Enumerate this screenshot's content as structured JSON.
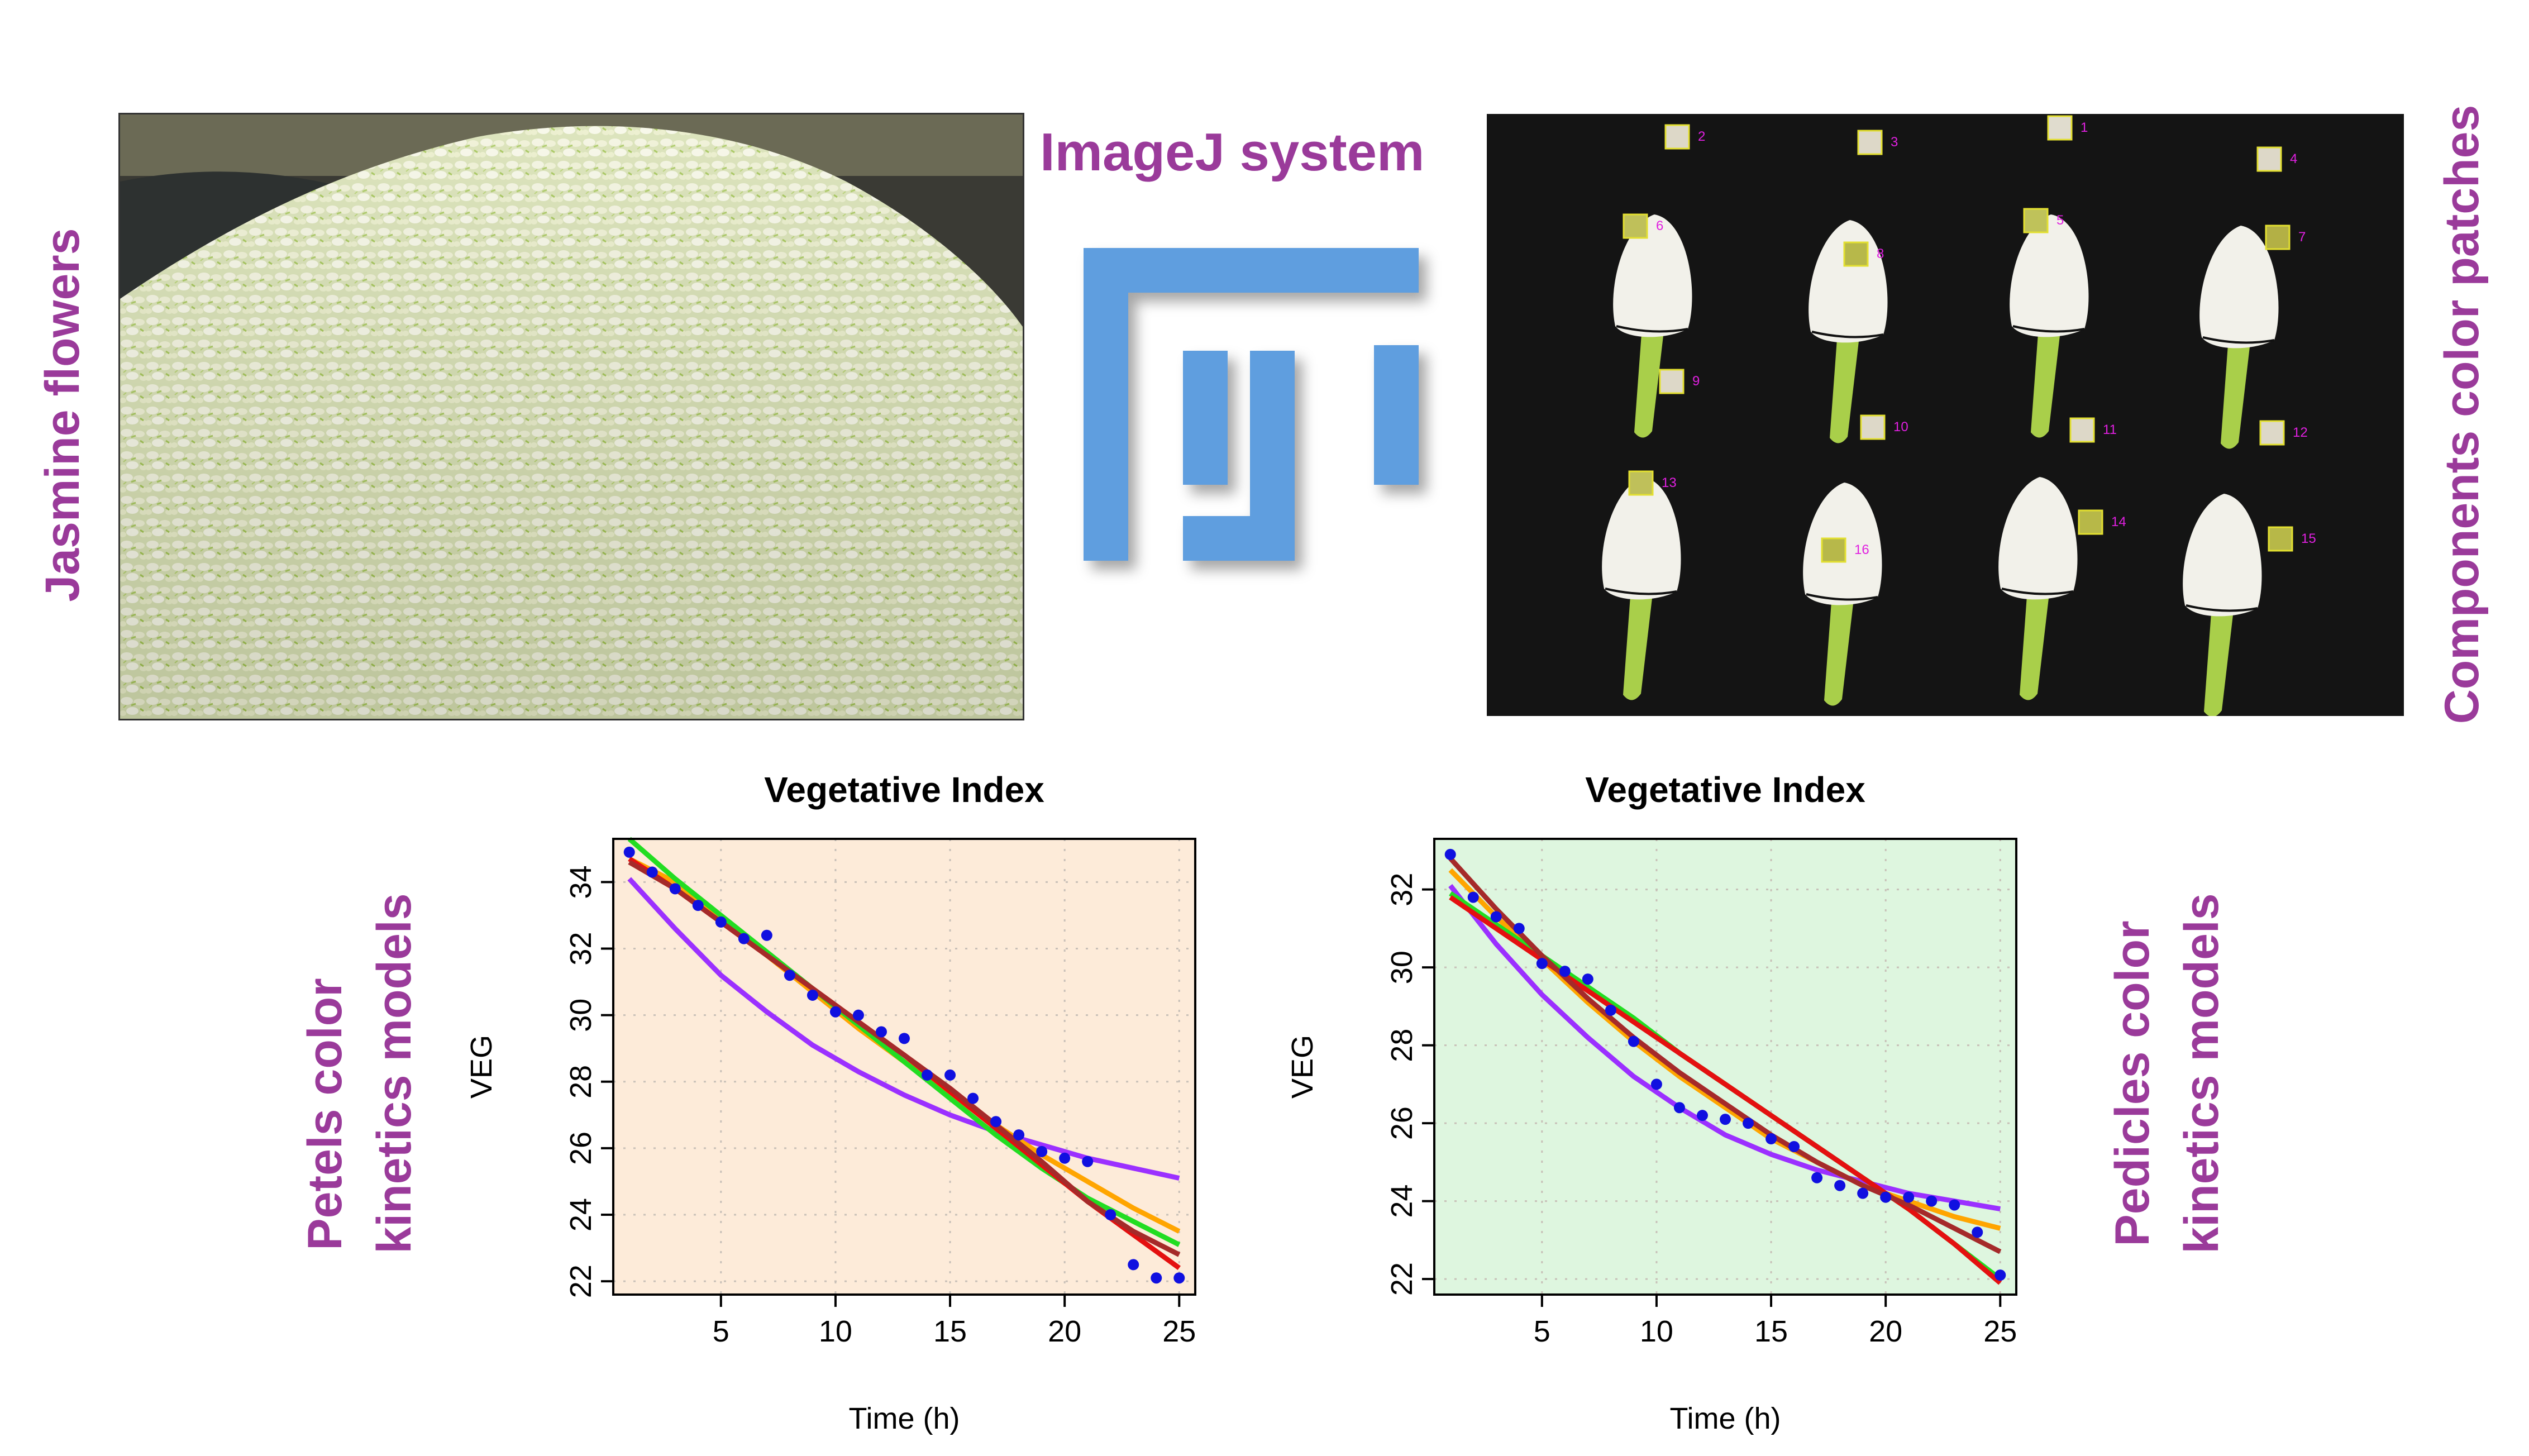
{
  "labels": {
    "jasmine_flowers": "Jasmine flowers",
    "imagej_system": "ImageJ system",
    "components_color_patches": "Components color patches",
    "petals_line1": "Petels color",
    "petals_line2": "kinetics models",
    "pedicles_line1": "Pedicles color",
    "pedicles_line2": "kinetics models"
  },
  "patch_labels": [
    "2",
    "3",
    "1",
    "4",
    "6",
    "8",
    "5",
    "7",
    "9",
    "10",
    "11",
    "12",
    "13",
    "16",
    "14",
    "15"
  ],
  "colors": {
    "label_purple": "#9a3a9a",
    "fiji_blue": "#5f9edf",
    "chart1_bg": "#fdebd9",
    "chart2_bg": "#def6df",
    "points": "#1010e0",
    "model_purple": "#9b30ff",
    "model_orange": "#ffa500",
    "model_green": "#22dd22",
    "model_red": "#e41010",
    "model_brown": "#a52a2a"
  },
  "chart_data": [
    {
      "type": "scatter",
      "title": "Vegetative Index",
      "xlabel": "Time (h)",
      "ylabel": "VEG",
      "xlim": [
        0.3,
        25.7
      ],
      "ylim": [
        21.6,
        35.3
      ],
      "xticks": [
        5,
        10,
        15,
        20,
        25
      ],
      "yticks": [
        22,
        24,
        26,
        28,
        30,
        32,
        34
      ],
      "grid": true,
      "background": "#fdebd9",
      "x": [
        1,
        2,
        3,
        4,
        5,
        6,
        7,
        8,
        9,
        10,
        11,
        12,
        13,
        14,
        15,
        16,
        17,
        18,
        19,
        20,
        21,
        22,
        23,
        24,
        25
      ],
      "y": [
        34.9,
        34.3,
        33.8,
        33.3,
        32.8,
        32.3,
        32.4,
        31.2,
        30.6,
        30.1,
        30.0,
        29.5,
        29.3,
        28.2,
        28.2,
        27.5,
        26.8,
        26.4,
        25.9,
        25.7,
        25.6,
        24.0,
        22.5,
        22.1,
        22.1
      ],
      "series": [
        {
          "color": "#9b30ff",
          "x": [
            1,
            3,
            5,
            7,
            9,
            11,
            13,
            15,
            17,
            19,
            21,
            23,
            25
          ],
          "y": [
            34.1,
            32.6,
            31.2,
            30.1,
            29.1,
            28.3,
            27.6,
            27.0,
            26.5,
            26.1,
            25.7,
            25.4,
            25.1
          ]
        },
        {
          "color": "#ffa500",
          "x": [
            1,
            3,
            5,
            7,
            9,
            11,
            13,
            15,
            17,
            19,
            21,
            23,
            25
          ],
          "y": [
            34.7,
            34.0,
            32.9,
            31.8,
            30.7,
            29.6,
            28.6,
            27.6,
            26.7,
            25.8,
            25.0,
            24.2,
            23.5
          ]
        },
        {
          "color": "#22dd22",
          "x": [
            1,
            3,
            5,
            7,
            9,
            11,
            13,
            15,
            17,
            19,
            21,
            23,
            25
          ],
          "y": [
            35.3,
            34.1,
            33.0,
            31.9,
            30.8,
            29.7,
            28.6,
            27.5,
            26.4,
            25.4,
            24.5,
            23.8,
            23.1
          ]
        },
        {
          "color": "#e41010",
          "x": [
            1,
            3,
            5,
            7,
            9,
            11,
            13,
            15,
            17,
            19,
            21,
            23,
            25
          ],
          "y": [
            34.7,
            33.8,
            32.8,
            31.8,
            30.8,
            29.8,
            28.8,
            27.7,
            26.6,
            25.5,
            24.4,
            23.4,
            22.4
          ]
        },
        {
          "color": "#a52a2a",
          "x": [
            1,
            3,
            5,
            7,
            9,
            11,
            13,
            15,
            17,
            19,
            21,
            23,
            25
          ],
          "y": [
            34.6,
            33.8,
            32.8,
            31.8,
            30.8,
            29.8,
            28.8,
            27.8,
            26.7,
            25.6,
            24.4,
            23.5,
            22.8
          ]
        }
      ]
    },
    {
      "type": "scatter",
      "title": "Vegetative Index",
      "xlabel": "Time (h)",
      "ylabel": "VEG",
      "xlim": [
        0.3,
        25.7
      ],
      "ylim": [
        21.6,
        33.3
      ],
      "xticks": [
        5,
        10,
        15,
        20,
        25
      ],
      "yticks": [
        22,
        24,
        26,
        28,
        30,
        32
      ],
      "grid": true,
      "background": "#def6df",
      "x": [
        1,
        2,
        3,
        4,
        5,
        6,
        7,
        8,
        9,
        10,
        11,
        12,
        13,
        14,
        15,
        16,
        17,
        18,
        19,
        20,
        21,
        22,
        23,
        24,
        25
      ],
      "y": [
        32.9,
        31.8,
        31.3,
        31.0,
        30.1,
        29.9,
        29.7,
        28.9,
        28.1,
        27.0,
        26.4,
        26.2,
        26.1,
        26.0,
        25.6,
        25.4,
        24.6,
        24.4,
        24.2,
        24.1,
        24.1,
        24.0,
        23.9,
        23.2,
        22.1
      ],
      "series": [
        {
          "color": "#9b30ff",
          "x": [
            1,
            3,
            5,
            7,
            9,
            11,
            13,
            15,
            17,
            19,
            21,
            23,
            25
          ],
          "y": [
            32.1,
            30.6,
            29.3,
            28.2,
            27.2,
            26.4,
            25.7,
            25.2,
            24.8,
            24.5,
            24.2,
            24.0,
            23.8
          ]
        },
        {
          "color": "#ffa500",
          "x": [
            1,
            3,
            5,
            7,
            9,
            11,
            13,
            15,
            17,
            19,
            21,
            23,
            25
          ],
          "y": [
            32.5,
            31.3,
            30.2,
            29.1,
            28.1,
            27.2,
            26.4,
            25.6,
            25.0,
            24.4,
            24.0,
            23.6,
            23.3
          ]
        },
        {
          "color": "#22dd22",
          "x": [
            1,
            3,
            5,
            7,
            9,
            11,
            13,
            15,
            17,
            19,
            21,
            23,
            25
          ],
          "y": [
            31.9,
            31.1,
            30.3,
            29.5,
            28.7,
            27.8,
            27.0,
            26.2,
            25.4,
            24.6,
            23.8,
            22.9,
            22.0
          ]
        },
        {
          "color": "#e41010",
          "x": [
            1,
            3,
            5,
            7,
            9,
            11,
            13,
            15,
            17,
            19,
            21,
            23,
            25
          ],
          "y": [
            31.8,
            31.0,
            30.2,
            29.4,
            28.6,
            27.8,
            27.0,
            26.2,
            25.4,
            24.6,
            23.8,
            22.9,
            21.9
          ]
        },
        {
          "color": "#a52a2a",
          "x": [
            1,
            3,
            5,
            7,
            9,
            11,
            13,
            15,
            17,
            19,
            21,
            23,
            25
          ],
          "y": [
            32.8,
            31.5,
            30.3,
            29.2,
            28.2,
            27.3,
            26.5,
            25.7,
            25.0,
            24.4,
            23.9,
            23.3,
            22.7
          ]
        }
      ]
    }
  ]
}
